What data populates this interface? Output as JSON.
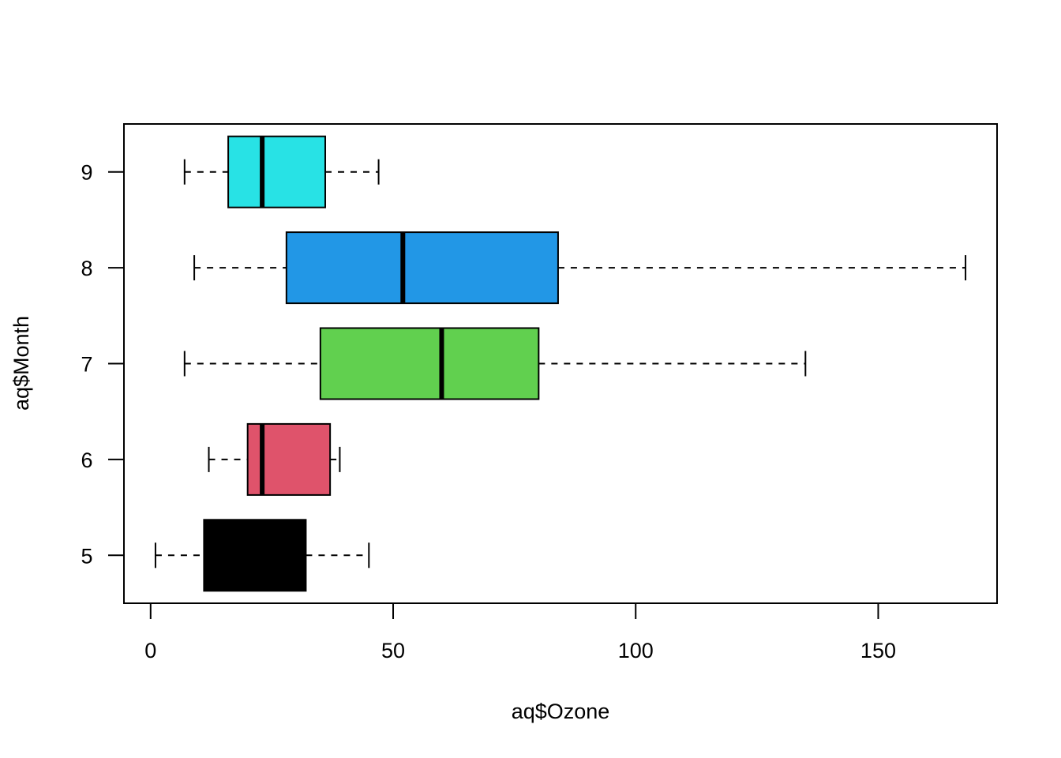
{
  "chart_data": {
    "type": "boxplot",
    "orientation": "horizontal",
    "title": "",
    "xlabel": "aq$Ozone",
    "ylabel": "aq$Month",
    "xlim": [
      -5.5,
      174.5
    ],
    "x_ticks": [
      0,
      50,
      100,
      150
    ],
    "x_tick_labels": [
      "0",
      "50",
      "100",
      "150"
    ],
    "categories": [
      "5",
      "6",
      "7",
      "8",
      "9"
    ],
    "grid": false,
    "legend": "none",
    "boxes": [
      {
        "category": "5",
        "whisker_low": 1,
        "q1": 11,
        "median": 18,
        "q3": 32,
        "whisker_high": 45,
        "color": "#000000"
      },
      {
        "category": "6",
        "whisker_low": 12,
        "q1": 20,
        "median": 23,
        "q3": 37,
        "whisker_high": 39,
        "color": "#DF536B"
      },
      {
        "category": "7",
        "whisker_low": 7,
        "q1": 35,
        "median": 60,
        "q3": 80,
        "whisker_high": 135,
        "color": "#61D04F"
      },
      {
        "category": "8",
        "whisker_low": 9,
        "q1": 28,
        "median": 52,
        "q3": 84,
        "whisker_high": 168,
        "color": "#2297E6"
      },
      {
        "category": "9",
        "whisker_low": 7,
        "q1": 16,
        "median": 23,
        "q3": 36,
        "whisker_high": 47,
        "color": "#28E2E5"
      }
    ]
  }
}
